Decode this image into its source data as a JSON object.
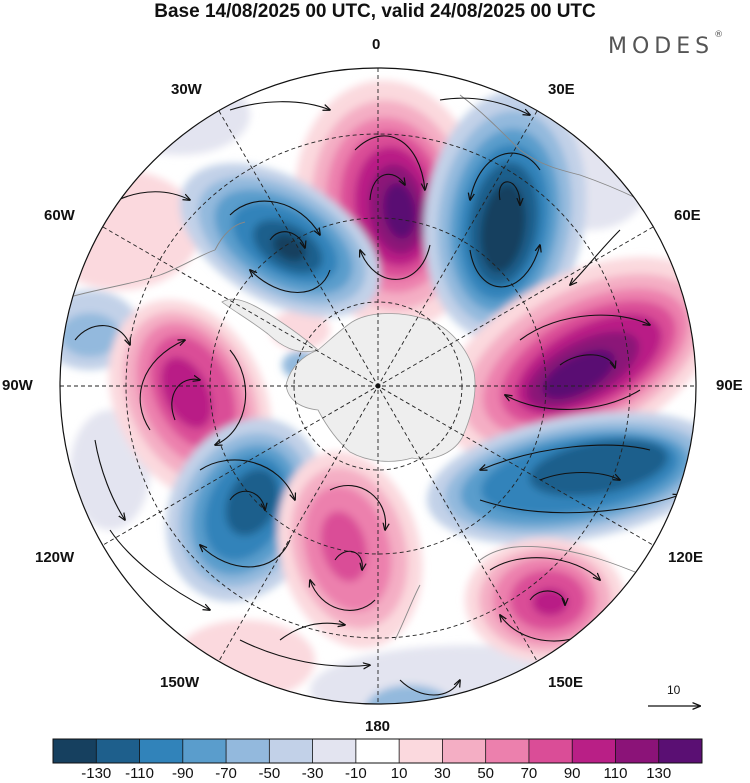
{
  "title": "Base 14/08/2025 00 UTC, valid 24/08/2025 00 UTC",
  "brand": "MODES",
  "brand_mark": "®",
  "longitude_labels": {
    "top": "0",
    "bottom": "180",
    "left": "90W",
    "right": "90E",
    "upper_left_30": "30W",
    "upper_left_60": "60W",
    "upper_right_30": "30E",
    "upper_right_60": "60E",
    "lower_left_120": "120W",
    "lower_left_150": "150W",
    "lower_right_120": "120E",
    "lower_right_150": "150E"
  },
  "reference_vector": {
    "label": "10",
    "value": 10
  },
  "colorbar": {
    "ticks": [
      "-130",
      "-110",
      "-90",
      "-70",
      "-50",
      "-30",
      "-10",
      "10",
      "30",
      "50",
      "70",
      "90",
      "110",
      "130"
    ],
    "colors": [
      "#16405f",
      "#1e5f8c",
      "#3183ba",
      "#5a9dcc",
      "#93b9dd",
      "#c2d1e8",
      "#e3e4f0",
      "#ffffff",
      "#fbd9de",
      "#f4aec4",
      "#ec80ad",
      "#da4d97",
      "#b91f86",
      "#8b1378",
      "#5a0f73"
    ]
  }
}
